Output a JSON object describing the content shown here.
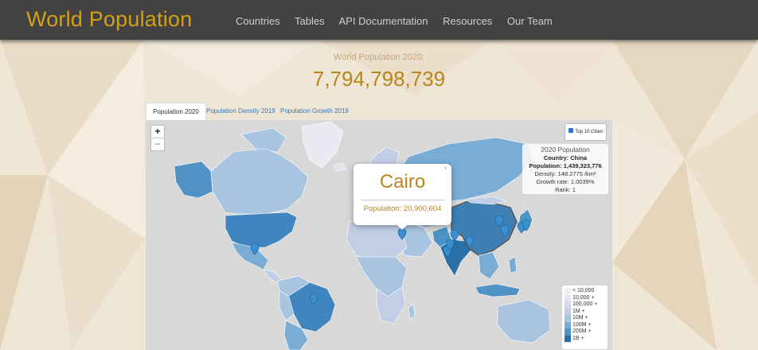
{
  "navbar": {
    "brand": "World Population",
    "links": [
      "Countries",
      "Tables",
      "API Documentation",
      "Resources",
      "Our Team"
    ]
  },
  "header": {
    "label": "World Population 2020:",
    "value": "7,794,798,739"
  },
  "tabs": [
    {
      "label": "Population 2020",
      "active": true
    },
    {
      "label": "Population Density 2019",
      "active": false
    },
    {
      "label": "Population Growth 2019",
      "active": false
    }
  ],
  "map": {
    "zoom": {
      "in": "+",
      "out": "−"
    },
    "top_cities": {
      "label": "Top 10 Cities",
      "checked": true
    },
    "info_box": {
      "title": "2020 Population",
      "country_label": "Country:",
      "country": "China",
      "population_label": "Population:",
      "population": "1,439,323,776",
      "density_label": "Density:",
      "density": "148.2775 /km²",
      "growth_label": "Growth rate:",
      "growth": "1.0039%",
      "rank_label": "Rank:",
      "rank": "1"
    },
    "popup": {
      "city": "Cairo",
      "population_text": "Population: 20,900,604",
      "close": "×"
    },
    "legend": [
      {
        "label": "< 10,000",
        "color": "#f0f0f6"
      },
      {
        "label": "10,000 +",
        "color": "#e4e2ef"
      },
      {
        "label": "100,000 +",
        "color": "#d6d6ea"
      },
      {
        "label": "1M +",
        "color": "#c2cde6"
      },
      {
        "label": "10M +",
        "color": "#a9c4e0"
      },
      {
        "label": "100M +",
        "color": "#7aadd6"
      },
      {
        "label": "200M +",
        "color": "#4e92c6"
      },
      {
        "label": "1B +",
        "color": "#2b6fa7"
      }
    ],
    "colors": {
      "ocean": "#d8d8d8",
      "accent": "#b8861c",
      "marker": "#3a8fd0",
      "highlight_border": "#555555"
    }
  }
}
